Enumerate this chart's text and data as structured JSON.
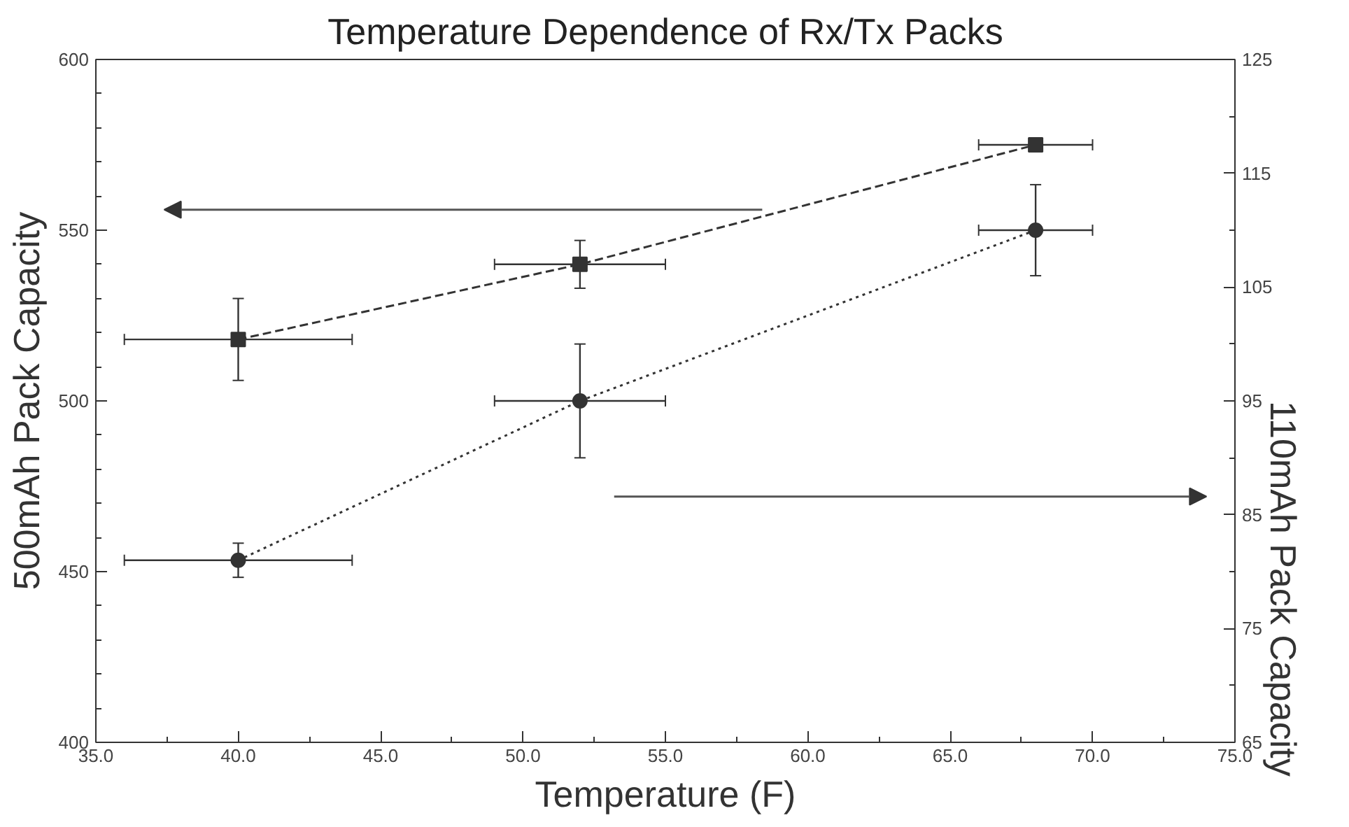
{
  "chart_data": {
    "type": "line",
    "title": "Temperature Dependence of Rx/Tx Packs",
    "xlabel": "Temperature (F)",
    "ylabel": "500mAh Pack Capacity",
    "y2label": "110mAh Pack Capacity",
    "x": [
      40,
      52,
      68
    ],
    "series": [
      {
        "color": "#333333",
        "marker": "square",
        "line_style": "dashed",
        "values": [
          518,
          540,
          575
        ],
        "errors": [
          12,
          7,
          null
        ],
        "xerrors": [
          4,
          3,
          2
        ]
      },
      {
        "color": "#333333",
        "marker": "circle",
        "line_style": "dotted",
        "axis": "y2",
        "values": [
          81,
          95,
          110
        ],
        "errors": [
          1.5,
          5,
          4
        ],
        "xerrors": [
          4,
          3,
          2
        ]
      }
    ],
    "xlim": [
      35,
      75
    ],
    "xticks": [
      {
        "value": 35,
        "label": "35.0"
      },
      {
        "value": 40,
        "label": "40.0"
      },
      {
        "value": 45,
        "label": "45.0"
      },
      {
        "value": 50,
        "label": "50.0"
      },
      {
        "value": 55,
        "label": "55.0"
      },
      {
        "value": 60,
        "label": "60.0"
      },
      {
        "value": 65,
        "label": "65.0"
      },
      {
        "value": 70,
        "label": "70.0"
      },
      {
        "value": 75,
        "label": "75.0"
      }
    ],
    "ylim": [
      400,
      600
    ],
    "yticks": [
      400,
      450,
      500,
      550,
      600
    ],
    "y2lim": [
      65,
      125
    ],
    "y2ticks": [
      65,
      75,
      85,
      95,
      105,
      115,
      125
    ],
    "grid": false
  }
}
